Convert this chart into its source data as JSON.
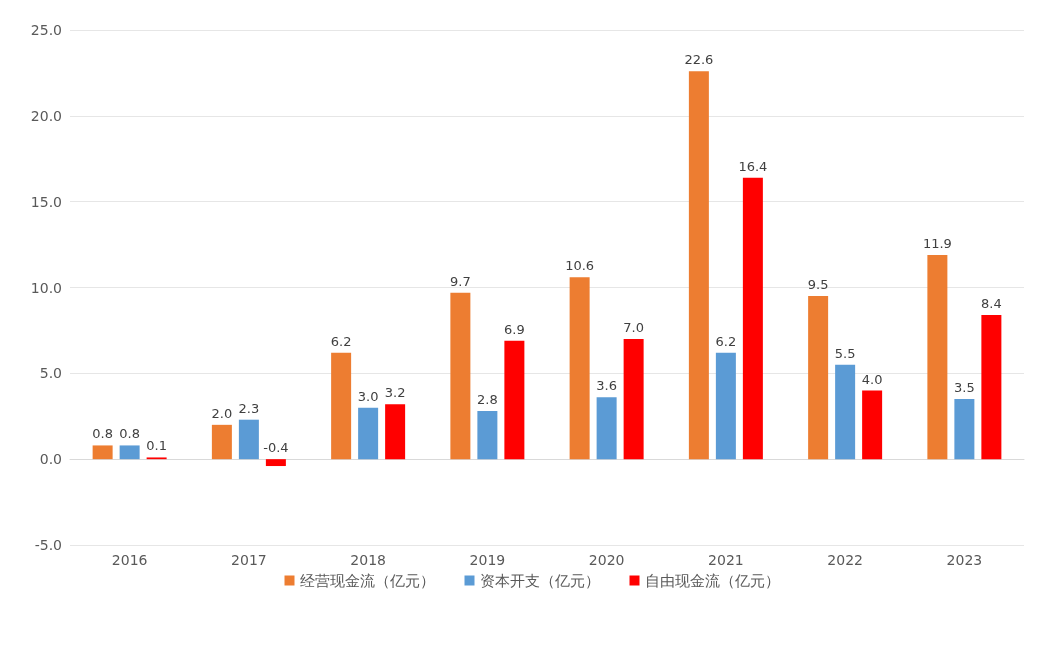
{
  "chart_data": {
    "type": "bar",
    "categories": [
      "2016",
      "2017",
      "2018",
      "2019",
      "2020",
      "2021",
      "2022",
      "2023"
    ],
    "series": [
      {
        "name": "经营现金流（亿元）",
        "color": "#ed7d31",
        "values": [
          0.8,
          2.0,
          6.2,
          9.7,
          10.6,
          22.6,
          9.5,
          11.9
        ],
        "value_labels": [
          "0.8",
          "2.0",
          "6.2",
          "9.7",
          "10.6",
          "22.6",
          "9.5",
          "11.9"
        ]
      },
      {
        "name": "资本开支（亿元）",
        "color": "#5b9bd5",
        "values": [
          0.8,
          2.3,
          3.0,
          2.8,
          3.6,
          6.2,
          5.5,
          3.5
        ],
        "value_labels": [
          "0.8",
          "2.3",
          "3.0",
          "2.8",
          "3.6",
          "6.2",
          "5.5",
          "3.5"
        ]
      },
      {
        "name": "自由现金流（亿元）",
        "color": "#ff0000",
        "values": [
          0.1,
          -0.4,
          3.2,
          6.9,
          7.0,
          16.4,
          4.0,
          8.4
        ],
        "value_labels": [
          "0.1",
          "-0.4",
          "3.2",
          "6.9",
          "7.0",
          "16.4",
          "4.0",
          "8.4"
        ]
      }
    ],
    "ylim": [
      -5,
      25
    ],
    "yticks": [
      {
        "value": -5,
        "label": "-5.0"
      },
      {
        "value": 0,
        "label": "0.0"
      },
      {
        "value": 5,
        "label": "5.0"
      },
      {
        "value": 10,
        "label": "10.0"
      },
      {
        "value": 15,
        "label": "15.0"
      },
      {
        "value": 20,
        "label": "20.0"
      },
      {
        "value": 25,
        "label": "25.0"
      }
    ],
    "grid": "y",
    "legend": "bottom"
  }
}
